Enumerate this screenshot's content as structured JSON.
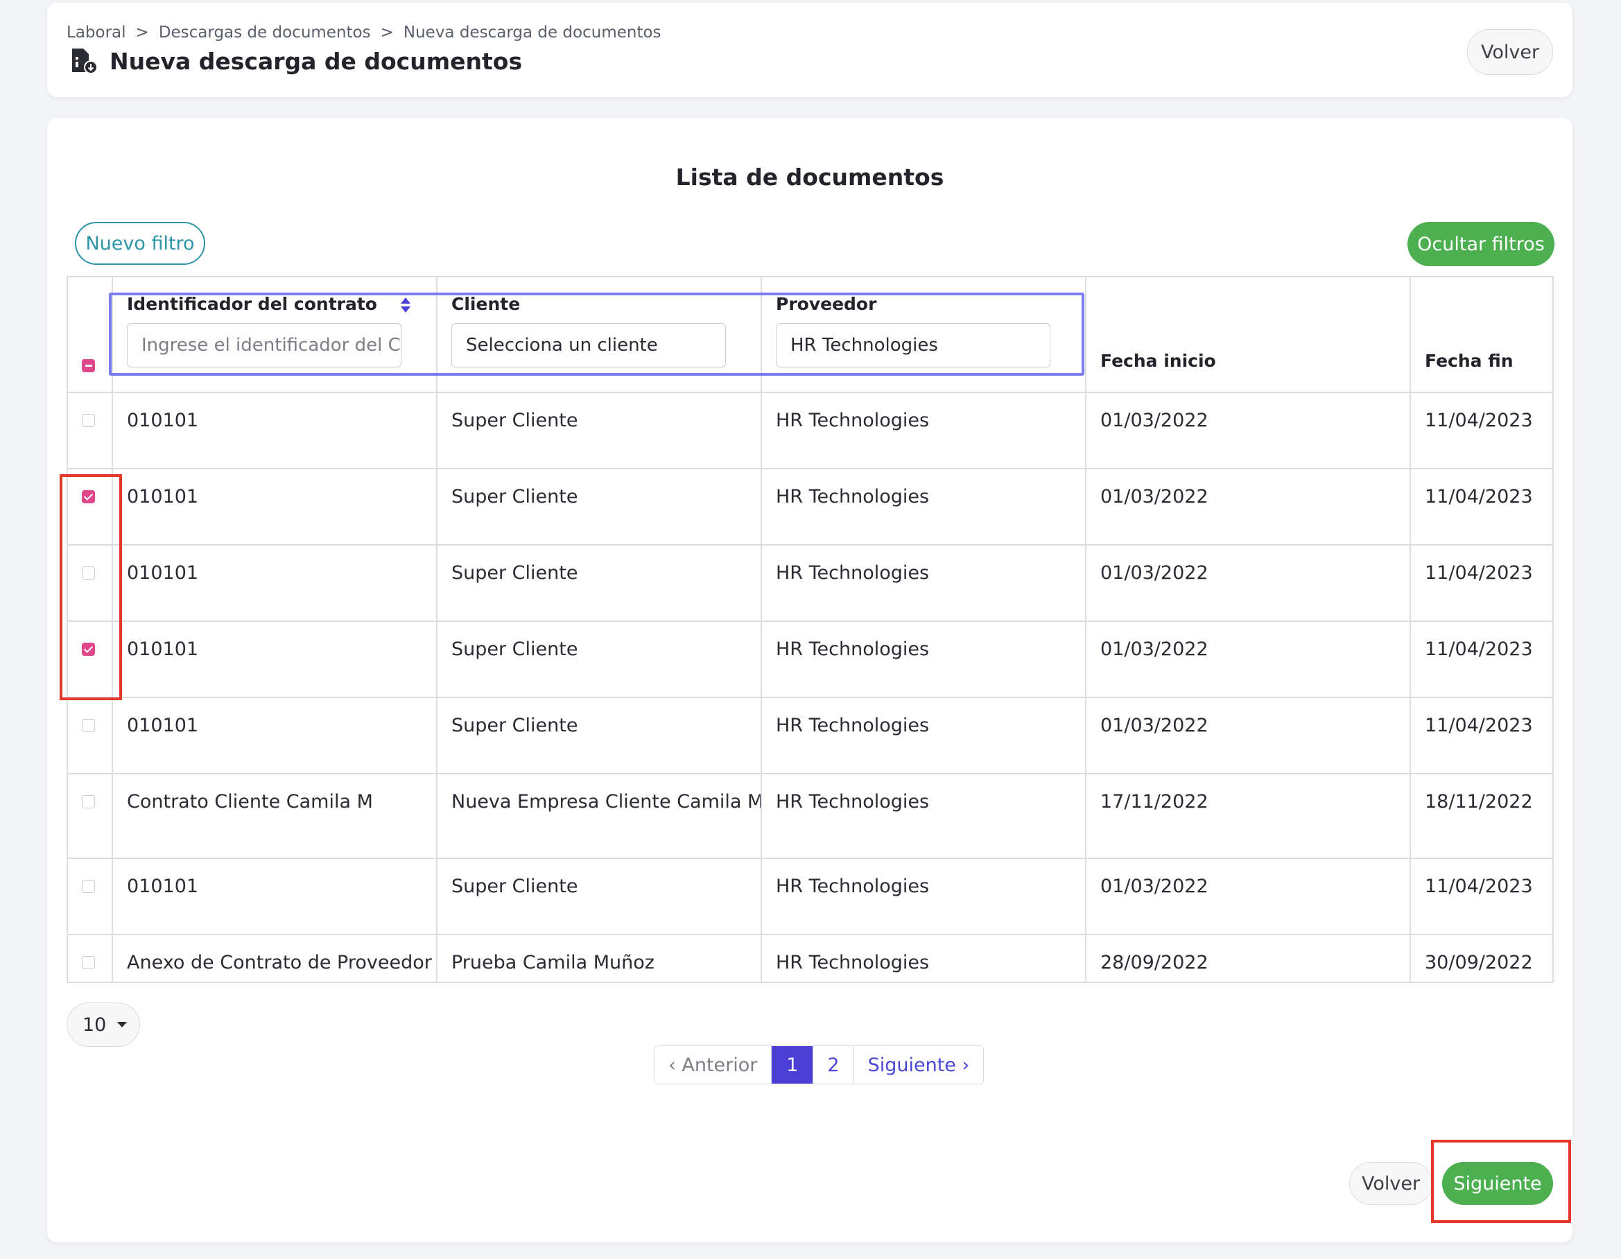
{
  "header": {
    "breadcrumb": [
      "Laboral",
      "Descargas de documentos",
      "Nueva descarga de documentos"
    ],
    "breadcrumb_sep": ">",
    "title": "Nueva descarga de documentos",
    "back_label": "Volver",
    "title_icon": "document-download-icon"
  },
  "main": {
    "list_title": "Lista de documentos",
    "new_filter_label": "Nuevo filtro",
    "hide_filters_label": "Ocultar filtros"
  },
  "table": {
    "columns": {
      "contract_id": "Identificador del contrato",
      "client": "Cliente",
      "provider": "Proveedor",
      "start_date": "Fecha inicio",
      "end_date": "Fecha fin"
    },
    "filters": {
      "contract_id_placeholder": "Ingrese el identificador del Contrato",
      "client_value": "Selecciona un cliente",
      "provider_value": "HR Technologies"
    },
    "rows": [
      {
        "checked": false,
        "contract": "010101",
        "client": "Super Cliente",
        "provider": "HR Technologies",
        "start": "01/03/2022",
        "end": "11/04/2023"
      },
      {
        "checked": true,
        "contract": "010101",
        "client": "Super Cliente",
        "provider": "HR Technologies",
        "start": "01/03/2022",
        "end": "11/04/2023"
      },
      {
        "checked": false,
        "contract": "010101",
        "client": "Super Cliente",
        "provider": "HR Technologies",
        "start": "01/03/2022",
        "end": "11/04/2023"
      },
      {
        "checked": true,
        "contract": "010101",
        "client": "Super Cliente",
        "provider": "HR Technologies",
        "start": "01/03/2022",
        "end": "11/04/2023"
      },
      {
        "checked": false,
        "contract": "010101",
        "client": "Super Cliente",
        "provider": "HR Technologies",
        "start": "01/03/2022",
        "end": "11/04/2023"
      },
      {
        "checked": false,
        "contract": "Contrato Cliente Camila M",
        "client": "Nueva Empresa Cliente Camila M",
        "provider": "HR Technologies",
        "start": "17/11/2022",
        "end": "18/11/2022"
      },
      {
        "checked": false,
        "contract": "010101",
        "client": "Super Cliente",
        "provider": "HR Technologies",
        "start": "01/03/2022",
        "end": "11/04/2023"
      },
      {
        "checked": false,
        "contract": "Anexo de Contrato de Proveedor",
        "client": "Prueba Camila Muñoz",
        "provider": "HR Technologies",
        "start": "28/09/2022",
        "end": "30/09/2022"
      }
    ]
  },
  "pagination": {
    "page_size": "10",
    "prev_label": "‹ Anterior",
    "pages": [
      "1",
      "2"
    ],
    "current_page": "1",
    "next_label": "Siguiente ›"
  },
  "footer": {
    "back_label": "Volver",
    "next_label": "Siguiente"
  },
  "colors": {
    "accent_green": "#4caf50",
    "accent_teal": "#2e95a8",
    "check_pink": "#e0468a",
    "pagination_active": "#4b3fd6",
    "highlight_blue": "#7b7cf0",
    "highlight_red": "#e23a2a"
  }
}
